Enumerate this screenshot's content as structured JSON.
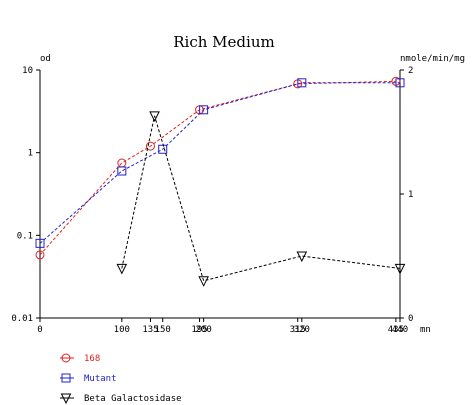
{
  "chart_data": {
    "type": "line",
    "title": "Rich Medium",
    "y_left_label": "od",
    "y_right_label": "nmole/min/mg",
    "x_unit": "mn",
    "xlim": [
      0,
      440
    ],
    "y_left_scale": "log",
    "y_left_lim": [
      0.01,
      10
    ],
    "y_left_ticks": [
      "0.01",
      "0.1",
      "1",
      "10"
    ],
    "y_right_lim": [
      0,
      2
    ],
    "y_right_ticks": [
      "0",
      "1",
      "2"
    ],
    "x_ticks": [
      "0",
      "100",
      "135",
      "150",
      "195",
      "200",
      "315",
      "320",
      "435",
      "440"
    ],
    "x_tick_values": [
      0,
      100,
      135,
      150,
      195,
      200,
      315,
      320,
      435,
      440
    ],
    "grid": false,
    "legend_position": "bottom-left",
    "series": [
      {
        "name": "168",
        "axis": "left",
        "color": "#dd2222",
        "marker": "circle",
        "x": [
          0,
          100,
          135,
          195,
          315,
          435
        ],
        "y": [
          0.058,
          0.75,
          1.2,
          3.3,
          6.8,
          7.3
        ]
      },
      {
        "name": "Mutant",
        "axis": "left",
        "color": "#2222cc",
        "marker": "square",
        "x": [
          0,
          100,
          150,
          200,
          320,
          440
        ],
        "y": [
          0.08,
          0.6,
          1.1,
          3.3,
          7.0,
          7.0
        ]
      },
      {
        "name": "Beta Galactosidase",
        "axis": "right",
        "color": "#000000",
        "marker": "triangle-down",
        "x": [
          100,
          140,
          200,
          320,
          440
        ],
        "y": [
          0.4,
          1.63,
          0.3,
          0.5,
          0.4
        ]
      }
    ]
  }
}
